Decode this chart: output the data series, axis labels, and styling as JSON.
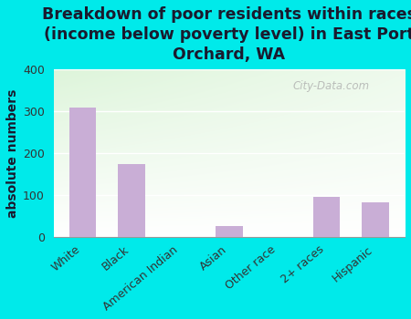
{
  "categories": [
    "White",
    "Black",
    "American Indian",
    "Asian",
    "Other race",
    "2+ races",
    "Hispanic"
  ],
  "values": [
    310,
    175,
    0,
    25,
    0,
    95,
    82
  ],
  "bar_color": "#c9aed6",
  "background_color": "#00eaea",
  "plot_bg_color_top_left": "#c8e6c2",
  "plot_bg_color_bottom_right": "#f8fff8",
  "title": "Breakdown of poor residents within races\n(income below poverty level) in East Port\nOrchard, WA",
  "ylabel": "absolute numbers",
  "ylim": [
    0,
    400
  ],
  "yticks": [
    0,
    100,
    200,
    300,
    400
  ],
  "watermark": "City-Data.com",
  "title_fontsize": 12.5,
  "ylabel_fontsize": 10,
  "tick_fontsize": 9
}
